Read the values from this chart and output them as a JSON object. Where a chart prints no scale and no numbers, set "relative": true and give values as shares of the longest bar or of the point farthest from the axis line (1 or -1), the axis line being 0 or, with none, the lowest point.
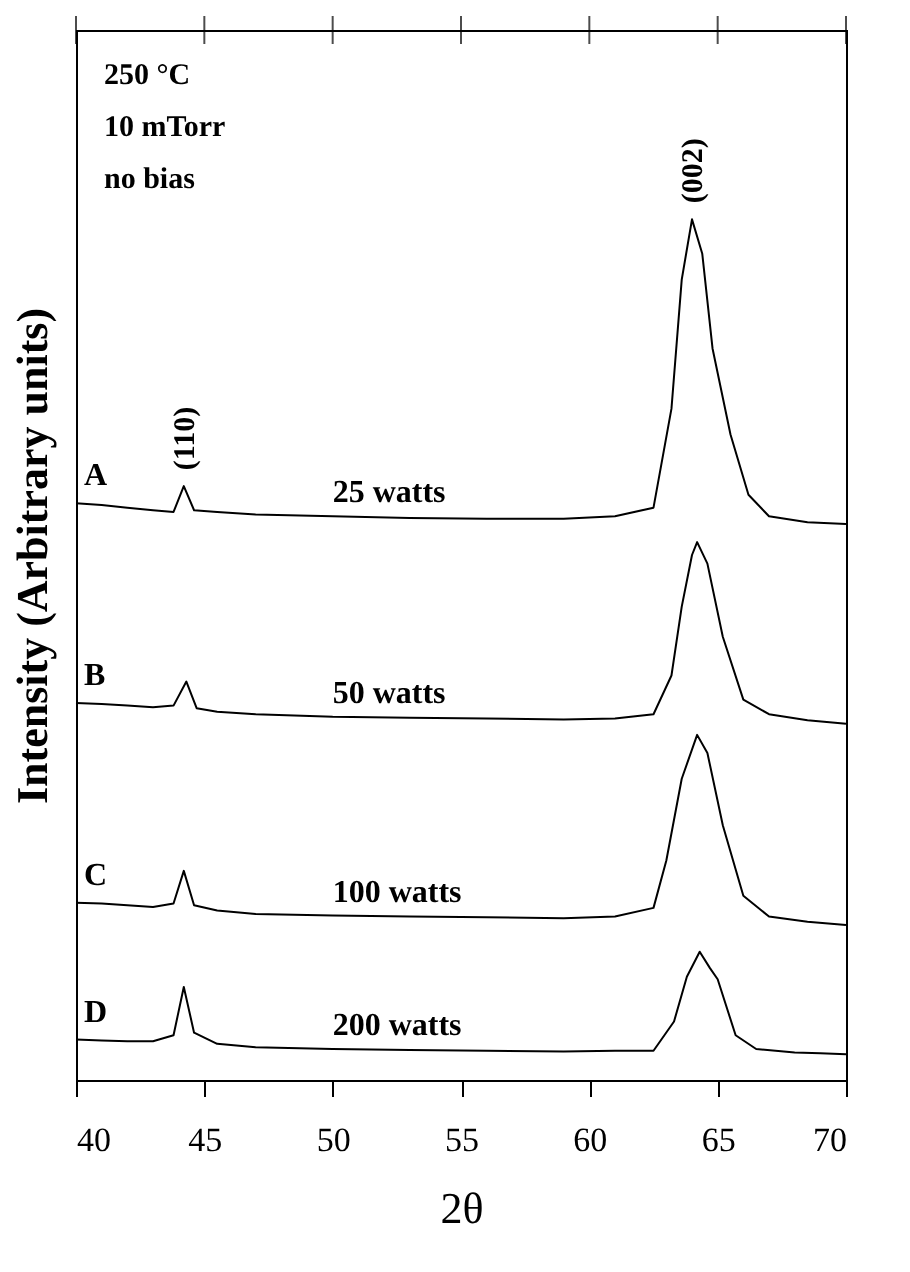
{
  "chart_data": {
    "type": "line",
    "relative": true,
    "xlabel": "2θ",
    "ylabel": "Intensity (Arbitrary units)",
    "xlim": [
      40,
      70
    ],
    "xticks": [
      40,
      45,
      50,
      55,
      60,
      65,
      70
    ],
    "grid": false,
    "legend": false,
    "marker": "none",
    "line_style": "solid",
    "tick_labels": "x",
    "series": [
      {
        "name": "A",
        "color": "#000000",
        "x": [
          40,
          41,
          42,
          43,
          43.8,
          44.2,
          44.6,
          45.5,
          47,
          50,
          53,
          56,
          59,
          61,
          62.5,
          63.2,
          63.6,
          64.0,
          64.4,
          64.8,
          65.5,
          66.2,
          67,
          68.5,
          70
        ],
        "values": [
          0.67,
          0.668,
          0.665,
          0.662,
          0.66,
          0.69,
          0.662,
          0.66,
          0.657,
          0.655,
          0.653,
          0.652,
          0.652,
          0.655,
          0.665,
          0.78,
          0.93,
          1.0,
          0.96,
          0.85,
          0.75,
          0.68,
          0.655,
          0.648,
          0.646
        ]
      },
      {
        "name": "B",
        "color": "#000000",
        "x": [
          40,
          41,
          42,
          43,
          43.8,
          44.3,
          44.7,
          45.5,
          47,
          50,
          53,
          56,
          59,
          61,
          62.5,
          63.2,
          63.6,
          64.0,
          64.2,
          64.6,
          65.2,
          66,
          67,
          68.5,
          70
        ],
        "values": [
          0.438,
          0.437,
          0.435,
          0.433,
          0.435,
          0.463,
          0.432,
          0.428,
          0.425,
          0.422,
          0.421,
          0.42,
          0.419,
          0.42,
          0.425,
          0.47,
          0.55,
          0.61,
          0.625,
          0.6,
          0.515,
          0.442,
          0.425,
          0.418,
          0.414
        ]
      },
      {
        "name": "C",
        "color": "#000000",
        "x": [
          40,
          41,
          42,
          43,
          43.8,
          44.2,
          44.6,
          45.5,
          47,
          50,
          53,
          56,
          59,
          61,
          62.5,
          63.0,
          63.6,
          64.2,
          64.6,
          65.2,
          66,
          67,
          68.5,
          70
        ],
        "values": [
          0.206,
          0.205,
          0.203,
          0.201,
          0.205,
          0.243,
          0.203,
          0.197,
          0.193,
          0.191,
          0.19,
          0.189,
          0.188,
          0.19,
          0.2,
          0.255,
          0.35,
          0.401,
          0.38,
          0.296,
          0.214,
          0.19,
          0.184,
          0.18
        ]
      },
      {
        "name": "D",
        "color": "#000000",
        "x": [
          40,
          41,
          42,
          43,
          43.8,
          44.2,
          44.6,
          45.5,
          47,
          50,
          53,
          56,
          59,
          61,
          62.5,
          63.3,
          63.8,
          64.3,
          64.7,
          65,
          65.7,
          66.5,
          68,
          69,
          70
        ],
        "values": [
          0.047,
          0.046,
          0.045,
          0.045,
          0.052,
          0.108,
          0.055,
          0.042,
          0.038,
          0.036,
          0.035,
          0.034,
          0.033,
          0.034,
          0.034,
          0.068,
          0.12,
          0.149,
          0.13,
          0.117,
          0.052,
          0.036,
          0.032,
          0.031,
          0.03
        ]
      }
    ],
    "annotations": [
      "250 °C",
      "10 mTorr",
      "no bias",
      {
        "text": "(110)",
        "x": 44.2,
        "y": 0.69
      },
      {
        "text": "(002)",
        "x": 64.0,
        "y": 1.0
      },
      {
        "text": "25 watts",
        "x": 50,
        "y": 0.655
      },
      {
        "text": "50 watts",
        "x": 50,
        "y": 0.422
      },
      {
        "text": "100 watts",
        "x": 50,
        "y": 0.191
      },
      {
        "text": "200 watts",
        "x": 50,
        "y": 0.036
      }
    ]
  }
}
